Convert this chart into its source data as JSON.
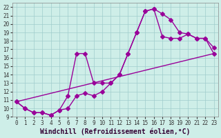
{
  "xlabel": "Windchill (Refroidissement éolien,°C)",
  "xlim": [
    -0.5,
    23.5
  ],
  "ylim": [
    9,
    22.5
  ],
  "yticks": [
    9,
    10,
    11,
    12,
    13,
    14,
    15,
    16,
    17,
    18,
    19,
    20,
    21,
    22
  ],
  "xticks": [
    0,
    1,
    2,
    3,
    4,
    5,
    6,
    7,
    8,
    9,
    10,
    11,
    12,
    13,
    14,
    15,
    16,
    17,
    18,
    19,
    20,
    21,
    22,
    23
  ],
  "bg_color": "#ceeee8",
  "grid_color": "#a0cccc",
  "line_color": "#990099",
  "line1_x": [
    0,
    1,
    2,
    3,
    4,
    5,
    6,
    7,
    8,
    9,
    10,
    11,
    12,
    13,
    14,
    15,
    16,
    17,
    18,
    19,
    20,
    21,
    22,
    23
  ],
  "line1_y": [
    10.8,
    10.0,
    9.5,
    9.5,
    9.2,
    9.8,
    10.0,
    11.5,
    11.8,
    11.5,
    12.0,
    13.0,
    14.0,
    16.5,
    19.0,
    21.5,
    21.8,
    21.2,
    20.5,
    19.0,
    18.8,
    18.3,
    18.3,
    17.2
  ],
  "line2_x": [
    0,
    1,
    2,
    3,
    4,
    5,
    6,
    7,
    8,
    9,
    10,
    11,
    12,
    13,
    14,
    15,
    16,
    17,
    18,
    19,
    20,
    21,
    22,
    23
  ],
  "line2_y": [
    10.8,
    10.0,
    9.5,
    9.5,
    9.2,
    9.8,
    11.5,
    16.5,
    16.5,
    13.0,
    13.0,
    13.0,
    14.0,
    16.5,
    19.0,
    21.5,
    21.8,
    18.5,
    18.3,
    18.3,
    18.8,
    18.3,
    18.3,
    16.5
  ],
  "line3_x": [
    0,
    23
  ],
  "line3_y": [
    10.8,
    16.5
  ],
  "marker": "D",
  "marker_size": 3,
  "linewidth": 1.0,
  "fontsize_ticks": 5.5,
  "fontsize_xlabel": 7.0
}
